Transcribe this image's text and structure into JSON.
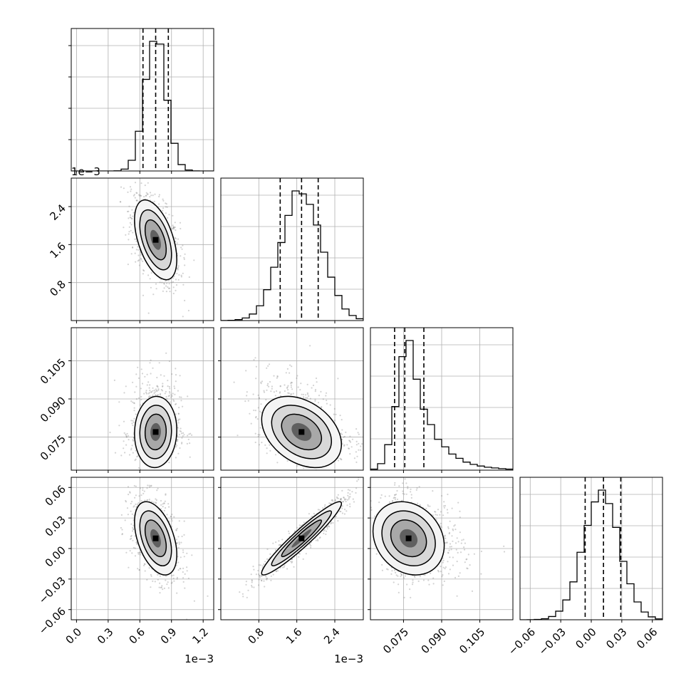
{
  "chart_data": {
    "type": "corner",
    "grid": true,
    "colors": {
      "line": "#000000",
      "points": "#808080",
      "grid": "#b0b0b0"
    },
    "parameters": [
      {
        "range": [
          -0.05,
          1.3
        ],
        "ticks": [
          0.0,
          0.3,
          0.6,
          0.9,
          1.2
        ],
        "tick_labels": [
          "0.0",
          "0.3",
          "0.6",
          "0.9",
          "1.2"
        ],
        "offset_label": "1e−3",
        "mean": 0.75,
        "std": 0.1,
        "quantiles": [
          0.63,
          0.75,
          0.87
        ]
      },
      {
        "range": [
          0.0,
          3.0
        ],
        "ticks": [
          0.8,
          1.6,
          2.4
        ],
        "tick_labels": [
          "0.8",
          "1.6",
          "2.4"
        ],
        "offset_label": "1e−3",
        "mean": 1.7,
        "std": 0.42,
        "quantiles": [
          1.25,
          1.7,
          2.05
        ]
      },
      {
        "range": [
          0.062,
          0.118
        ],
        "ticks": [
          0.075,
          0.09,
          0.105
        ],
        "tick_labels": [
          "0.075",
          "0.090",
          "0.105"
        ],
        "offset_label": "",
        "mean": 0.077,
        "std": 0.007,
        "quantiles": [
          0.0715,
          0.0755,
          0.083
        ]
      },
      {
        "range": [
          -0.07,
          0.07
        ],
        "ticks": [
          -0.06,
          -0.03,
          0.0,
          0.03,
          0.06
        ],
        "tick_labels": [
          "−0.06",
          "−0.03",
          "0.00",
          "0.03",
          "0.06"
        ],
        "offset_label": "",
        "mean": 0.01,
        "std": 0.018,
        "quantiles": [
          -0.006,
          0.012,
          0.029
        ]
      }
    ],
    "correlations": [
      {
        "pair": [
          0,
          1
        ],
        "rho": -0.5
      },
      {
        "pair": [
          0,
          2
        ],
        "rho": 0.05
      },
      {
        "pair": [
          1,
          2
        ],
        "rho": -0.35
      },
      {
        "pair": [
          0,
          3
        ],
        "rho": -0.45
      },
      {
        "pair": [
          1,
          3
        ],
        "rho": 0.95
      },
      {
        "pair": [
          2,
          3
        ],
        "rho": -0.2
      }
    ]
  }
}
